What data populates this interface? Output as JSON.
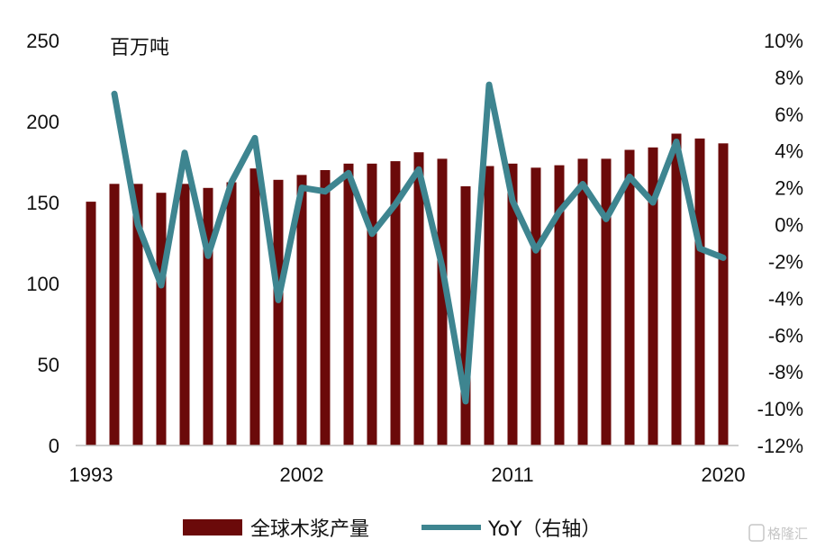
{
  "chart_data": {
    "type": "bar",
    "unit_label": "百万吨",
    "x": [
      1993,
      1994,
      1995,
      1996,
      1997,
      1998,
      1999,
      2000,
      2001,
      2002,
      2003,
      2004,
      2005,
      2006,
      2007,
      2008,
      2009,
      2010,
      2011,
      2012,
      2013,
      2014,
      2015,
      2016,
      2017,
      2018,
      2019,
      2020
    ],
    "x_tick_labels": [
      "1993",
      "2002",
      "2011",
      "2020"
    ],
    "series": [
      {
        "name": "全球木浆产量",
        "type": "bar",
        "axis": "left",
        "color": "#6b0a0a",
        "values": [
          150.5,
          161.5,
          161.5,
          156,
          161.5,
          159,
          162.5,
          171,
          164,
          167,
          170,
          174,
          174,
          175.5,
          181,
          177,
          160,
          172.5,
          174,
          171.5,
          173,
          177,
          177,
          182.5,
          184,
          192.5,
          189.5,
          186.5
        ]
      },
      {
        "name": "YoY（右轴）",
        "type": "line",
        "axis": "right",
        "color": "#3e8590",
        "values": [
          null,
          7.1,
          0.0,
          -3.3,
          3.9,
          -1.7,
          2.3,
          4.7,
          -4.1,
          2.0,
          1.8,
          2.8,
          -0.5,
          1.1,
          3.0,
          -2.3,
          -9.6,
          7.6,
          1.3,
          -1.4,
          0.7,
          2.2,
          0.3,
          2.6,
          1.2,
          4.5,
          -1.3,
          -1.8
        ]
      }
    ],
    "y_left": {
      "ylim": [
        0,
        250
      ],
      "ticks": [
        "0",
        "50",
        "100",
        "150",
        "200",
        "250"
      ]
    },
    "y_right": {
      "ylim": [
        -12,
        10
      ],
      "ticks": [
        "-12%",
        "-10%",
        "-8%",
        "-6%",
        "-4%",
        "-2%",
        "0%",
        "2%",
        "4%",
        "6%",
        "8%",
        "10%"
      ]
    },
    "grid": false,
    "legend_position": "bottom"
  },
  "watermark": "格隆汇"
}
